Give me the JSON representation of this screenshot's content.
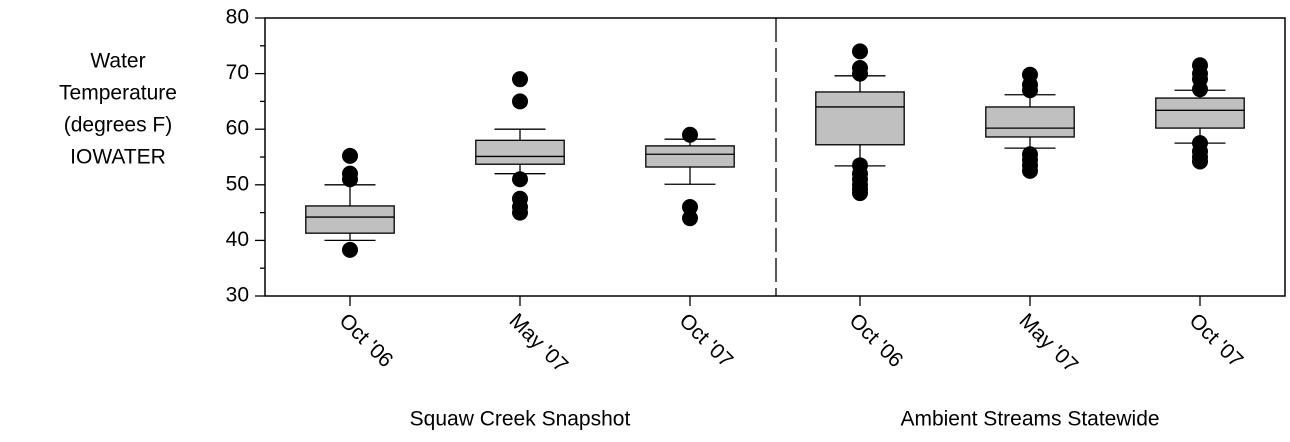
{
  "chart_data": {
    "type": "box",
    "ylabel": [
      "Water",
      "Temperature",
      "(degrees F)",
      "IOWATER"
    ],
    "categories": [
      "Oct '06",
      "May '07",
      "Oct '07",
      "Oct '06",
      "May '07",
      "Oct '07"
    ],
    "groups": [
      "Squaw Creek Snapshot",
      "Ambient Streams Statewide"
    ],
    "color": "#c0c0c0",
    "boxes": [
      {
        "whisker_low": 40,
        "q1": 41.3,
        "median": 44.2,
        "q3": 46.2,
        "whisker_high": 50,
        "outliers": [
          38.3,
          51,
          52,
          55.2
        ]
      },
      {
        "whisker_low": 52,
        "q1": 53.7,
        "median": 55.1,
        "q3": 58,
        "whisker_high": 60,
        "outliers": [
          45,
          46,
          47.5,
          51,
          65,
          69
        ]
      },
      {
        "whisker_low": 50.1,
        "q1": 53.2,
        "median": 55.5,
        "q3": 57,
        "whisker_high": 58.2,
        "outliers": [
          44,
          46,
          59
        ]
      },
      {
        "whisker_low": 53.4,
        "q1": 57.2,
        "median": 64,
        "q3": 66.7,
        "whisker_high": 69.6,
        "outliers": [
          48.5,
          49.2,
          50,
          51,
          52,
          53.5,
          70,
          71,
          74
        ]
      },
      {
        "whisker_low": 56.6,
        "q1": 58.6,
        "median": 60.2,
        "q3": 64,
        "whisker_high": 66.2,
        "outliers": [
          52.5,
          53.5,
          54.5,
          55.5,
          67,
          68,
          69.8
        ]
      },
      {
        "whisker_low": 57.5,
        "q1": 60.2,
        "median": 63.4,
        "q3": 65.6,
        "whisker_high": 67,
        "outliers": [
          54.2,
          55,
          56,
          57.5,
          67.2,
          69,
          70,
          71.5
        ]
      }
    ],
    "ylim": [
      30,
      80
    ],
    "yticks": [
      30,
      40,
      50,
      60,
      70,
      80
    ],
    "yminorticks": [
      35,
      45,
      55,
      65,
      75
    ]
  }
}
